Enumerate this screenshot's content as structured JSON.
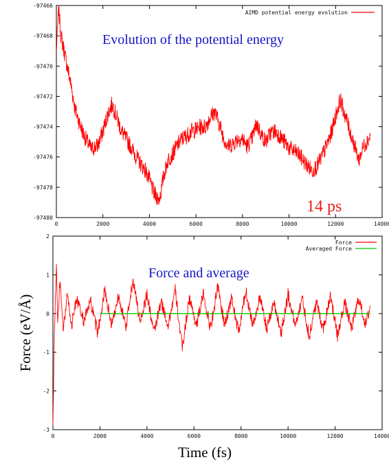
{
  "colors": {
    "series": "#ff0000",
    "average": "#00cc00",
    "annotation_blue": "#1414c8",
    "annotation_red": "#ee1c1c",
    "axis": "#000000"
  },
  "chart_data": [
    {
      "type": "line",
      "title": "",
      "xlabel": "",
      "ylabel": "",
      "xlim": [
        0,
        14000
      ],
      "ylim": [
        -97480,
        -97466
      ],
      "xticks": [
        "0",
        "2000",
        "4000",
        "6000",
        "8000",
        "10000",
        "12000",
        "14000"
      ],
      "yticks": [
        "-97466",
        "-97468",
        "-97470",
        "-97472",
        "-97474",
        "-97476",
        "-97478",
        "-97480"
      ],
      "grid": false,
      "legend_position": "top-right",
      "annotations": [
        "Evolution of the potential energy",
        "14 ps"
      ],
      "series": [
        {
          "name": "AIMD potential energy evolution",
          "color": "#ff0000",
          "x": [
            0,
            100,
            200,
            400,
            600,
            800,
            1000,
            1200,
            1500,
            1800,
            2000,
            2200,
            2400,
            2600,
            2800,
            3000,
            3200,
            3400,
            3600,
            3800,
            4000,
            4200,
            4400,
            4500,
            4600,
            4800,
            5000,
            5200,
            5400,
            5600,
            5800,
            6000,
            6200,
            6400,
            6600,
            6800,
            7000,
            7200,
            7400,
            7600,
            7800,
            8000,
            8200,
            8400,
            8600,
            8800,
            9000,
            9200,
            9400,
            9600,
            9800,
            10000,
            10200,
            10400,
            10600,
            10800,
            11000,
            11200,
            11400,
            11600,
            11800,
            12000,
            12200,
            12400,
            12600,
            12800,
            13000,
            13200,
            13500
          ],
          "y": [
            -97469,
            -97466.2,
            -97468,
            -97469.5,
            -97471,
            -97472.8,
            -97473.8,
            -97474.6,
            -97475.5,
            -97475.2,
            -97474.3,
            -97473.2,
            -97472.5,
            -97473.4,
            -97474.3,
            -97474.8,
            -97475.3,
            -97475.9,
            -97476.4,
            -97476.8,
            -97477.5,
            -97478.4,
            -97478.8,
            -97478.3,
            -97477.3,
            -97476.2,
            -97475.8,
            -97475.2,
            -97474.8,
            -97474.6,
            -97474.3,
            -97474.2,
            -97474,
            -97474,
            -97473.4,
            -97473,
            -97473.8,
            -97474.8,
            -97475.3,
            -97475.1,
            -97474.8,
            -97474.8,
            -97475.3,
            -97474.8,
            -97473.8,
            -97474.5,
            -97475,
            -97474.4,
            -97474.3,
            -97474.6,
            -97475,
            -97475.4,
            -97475.6,
            -97475.8,
            -97476.2,
            -97476.6,
            -97476.9,
            -97476.6,
            -97476,
            -97475.3,
            -97474.5,
            -97473.3,
            -97472.2,
            -97473.2,
            -97474.2,
            -97475.2,
            -97476.2,
            -97475.3,
            -97474.6
          ]
        }
      ]
    },
    {
      "type": "line",
      "title": "",
      "xlabel": "Time (fs)",
      "ylabel": "Force (eV/Å)",
      "xlim": [
        0,
        14000
      ],
      "ylim": [
        -3,
        2
      ],
      "xticks": [
        "0",
        "2000",
        "4000",
        "6000",
        "8000",
        "10000",
        "12000",
        "14000"
      ],
      "yticks": [
        "2",
        "1",
        "0",
        "-1",
        "-2",
        "-3"
      ],
      "grid": false,
      "legend_position": "top-right",
      "annotations": [
        "Force and average"
      ],
      "series": [
        {
          "name": "Force",
          "color": "#ff0000",
          "x": [
            0,
            60,
            150,
            200,
            300,
            450,
            600,
            800,
            1000,
            1300,
            1600,
            1900,
            2200,
            2500,
            2800,
            3100,
            3400,
            3700,
            4000,
            4300,
            4600,
            4900,
            5200,
            5500,
            5800,
            6100,
            6400,
            6700,
            7000,
            7300,
            7600,
            7900,
            8200,
            8500,
            8800,
            9100,
            9400,
            9700,
            10000,
            10300,
            10600,
            10900,
            11200,
            11500,
            11800,
            12100,
            12400,
            12700,
            13000,
            13300,
            13500
          ],
          "y": [
            -2.9,
            -0.6,
            1.35,
            -0.3,
            0.8,
            -0.5,
            0.5,
            -0.3,
            0.4,
            -0.2,
            0.3,
            -0.5,
            0.6,
            -0.3,
            0.5,
            -0.4,
            0.9,
            -0.2,
            0.5,
            -0.5,
            0.3,
            -0.3,
            0.6,
            -0.9,
            0.4,
            -0.3,
            0.5,
            -0.4,
            0.7,
            -0.3,
            0.4,
            -0.5,
            0.6,
            -0.3,
            0.4,
            -0.4,
            0.3,
            -0.5,
            0.5,
            -0.3,
            0.4,
            -0.6,
            0.3,
            -0.4,
            0.5,
            -0.6,
            0.3,
            -0.4,
            0.4,
            -0.3,
            0.2
          ]
        },
        {
          "name": "Averaged Force",
          "color": "#00cc00",
          "x": [
            2000,
            13500
          ],
          "y": [
            0,
            0
          ]
        }
      ]
    }
  ]
}
